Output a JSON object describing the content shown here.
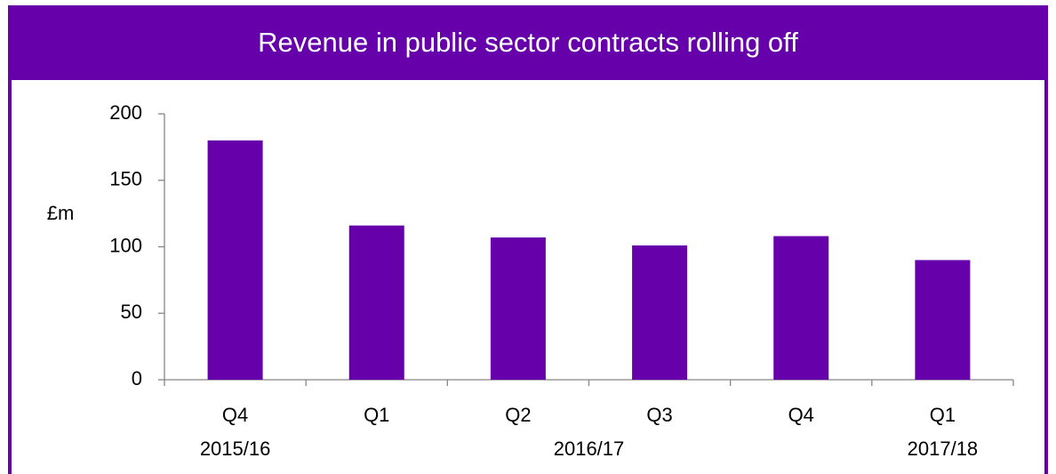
{
  "chart_data": {
    "type": "bar",
    "title": "Revenue in public sector contracts rolling off",
    "y_label": "£m",
    "categories": [
      "Q4",
      "Q1",
      "Q2",
      "Q3",
      "Q4",
      "Q1"
    ],
    "category_groups": [
      {
        "name": "2015/16",
        "span": 1
      },
      {
        "name": "2016/17",
        "span": 4
      },
      {
        "name": "2017/18",
        "span": 1
      }
    ],
    "values": [
      180,
      116,
      107,
      101,
      108,
      90
    ],
    "color": "#6600aa",
    "ylim": [
      0,
      200
    ],
    "yticks": [
      0,
      50,
      100,
      150,
      200
    ],
    "grid": false
  }
}
